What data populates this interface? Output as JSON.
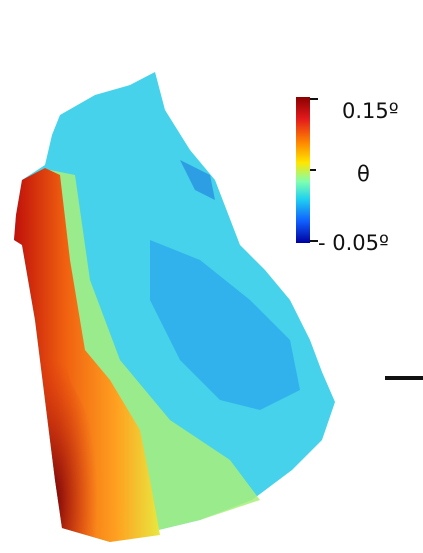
{
  "colorbar": {
    "max_label": "0.15º",
    "symbol": "θ",
    "min_label": "- 0.05º"
  }
}
